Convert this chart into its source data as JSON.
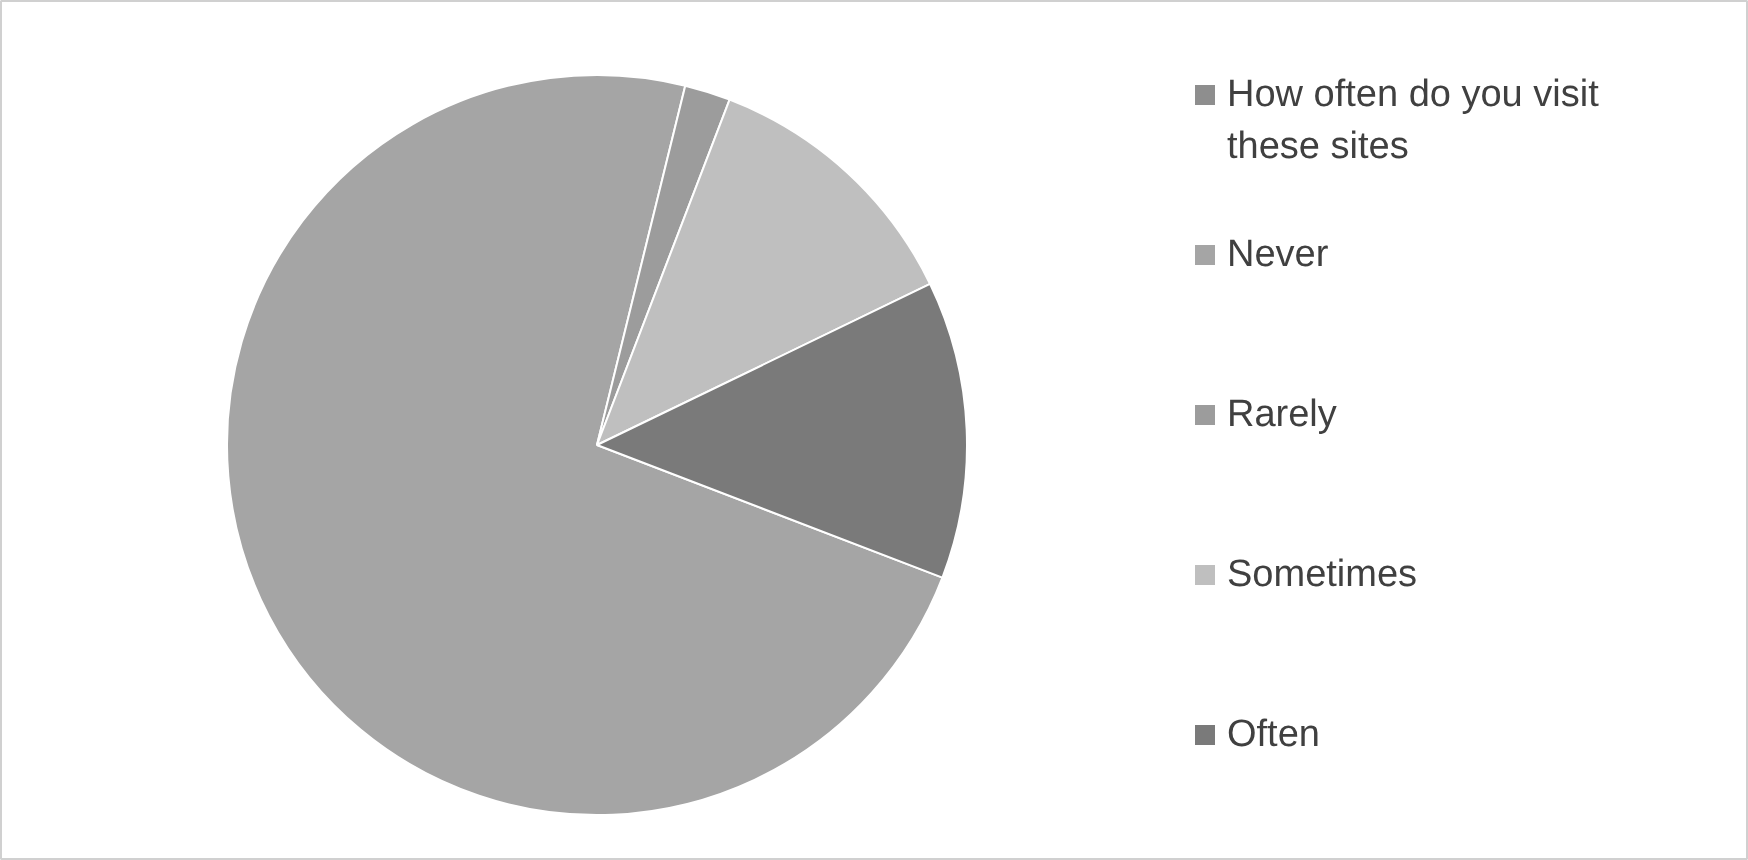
{
  "chart_data": {
    "type": "pie",
    "categories": [
      "How often do you visit these sites",
      "Never",
      "Rarely",
      "Sometimes",
      "Often"
    ],
    "values": [
      0,
      73,
      2,
      12,
      13
    ],
    "colors": [
      "#8e8e8e",
      "#a5a5a5",
      "#9c9c9c",
      "#bfbfbf",
      "#7a7a7a"
    ],
    "legend": "right"
  }
}
